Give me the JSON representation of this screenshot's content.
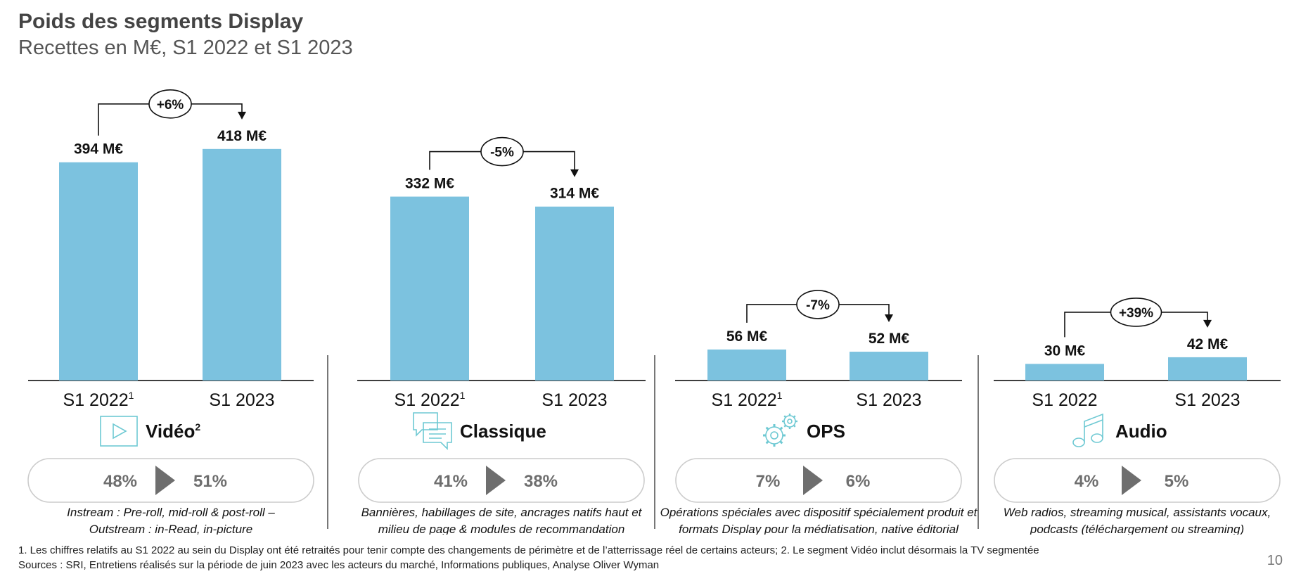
{
  "title": "Poids des segments Display",
  "subtitle": "Recettes en M€, S1 2022 et S1 2023",
  "chart_data": {
    "type": "bar",
    "unit": "M€",
    "colors": {
      "bar": "#7cc2df",
      "axis": "#222222",
      "divider": "#555555",
      "pill_border": "#cccccc",
      "pct_text": "#6e6e6e",
      "arrow": "#6e6e6e",
      "icon": "#6ec9d3"
    },
    "series_label_format": "{v} M€",
    "segments": [
      {
        "name": "Vidéo",
        "name_sup": "2",
        "icon": "play-icon",
        "categories": [
          "S1 2022",
          "S1 2023"
        ],
        "category_sups": [
          "1",
          ""
        ],
        "values": [
          394,
          418
        ],
        "change": "+6%",
        "share_from": "48%",
        "share_to": "51%",
        "description": [
          "Instream : Pre-roll, mid-roll & post-roll –",
          "Outstream : in-Read, in-picture"
        ]
      },
      {
        "name": "Classique",
        "name_sup": "",
        "icon": "chat-bubbles-icon",
        "categories": [
          "S1 2022",
          "S1 2023"
        ],
        "category_sups": [
          "1",
          ""
        ],
        "values": [
          332,
          314
        ],
        "change": "-5%",
        "share_from": "41%",
        "share_to": "38%",
        "description": [
          "Bannières, habillages de site, ancrages natifs haut et",
          "milieu de page & modules de recommandation"
        ]
      },
      {
        "name": "OPS",
        "name_sup": "",
        "icon": "gears-icon",
        "categories": [
          "S1 2022",
          "S1 2023"
        ],
        "category_sups": [
          "1",
          ""
        ],
        "values": [
          56,
          52
        ],
        "change": "-7%",
        "share_from": "7%",
        "share_to": "6%",
        "description": [
          "Opérations spéciales avec dispositif spécialement produit et",
          "formats Display pour la médiatisation, native éditorial"
        ]
      },
      {
        "name": "Audio",
        "name_sup": "",
        "icon": "music-note-icon",
        "categories": [
          "S1 2022",
          "S1 2023"
        ],
        "category_sups": [
          "",
          ""
        ],
        "values": [
          30,
          42
        ],
        "change": "+39%",
        "share_from": "4%",
        "share_to": "5%",
        "description": [
          "Web radios, streaming musical, assistants vocaux,",
          "podcasts (téléchargement ou streaming)"
        ]
      }
    ]
  },
  "footnotes": [
    "1. Les chiffres relatifs au S1 2022 au sein du Display ont été retraités pour tenir compte des changements de périmètre et de l’atterrissage réel de certains acteurs; 2. Le segment Vidéo inclut désormais la TV segmentée",
    "Sources : SRI, Entretiens réalisés sur la période de juin 2023 avec les acteurs du marché, Informations publiques, Analyse Oliver Wyman"
  ],
  "page_number": "10"
}
